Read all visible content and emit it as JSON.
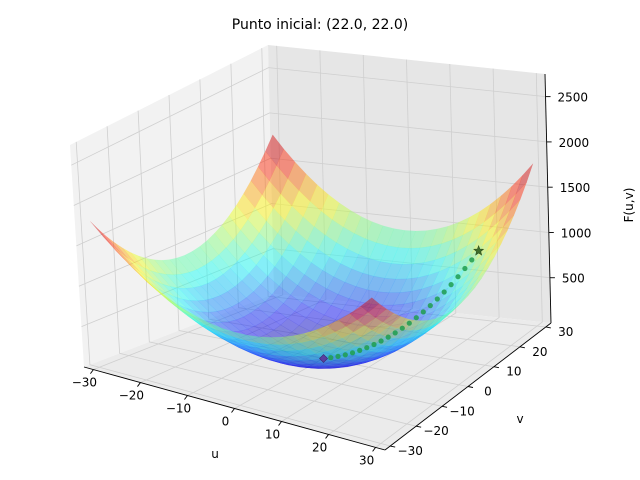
{
  "chart_data": {
    "type": "surface3d",
    "title": "Punto inicial: (22.0, 22.0)",
    "xlabel": "u",
    "ylabel": "v",
    "zlabel": "F(u,v)",
    "xlim": [
      -32,
      32
    ],
    "ylim": [
      -32,
      32
    ],
    "zlim": [
      0,
      2750
    ],
    "xticks": [
      -30,
      -20,
      -10,
      0,
      10,
      20,
      30
    ],
    "yticks": [
      -30,
      -20,
      -10,
      0,
      10,
      20,
      30
    ],
    "zticks": [
      500,
      1000,
      1500,
      2000,
      2500
    ],
    "surface": {
      "function": "F(u,v) = u^2 + v^2",
      "u_range": [
        -30,
        30
      ],
      "v_range": [
        -30,
        30
      ],
      "colormap": "jet",
      "alpha": 0.45
    },
    "path": {
      "start": {
        "u": 22.0,
        "v": 22.0,
        "F": 968,
        "marker": "star"
      },
      "end": {
        "u": 0.0,
        "v": 0.0,
        "F": 0,
        "marker": "diamond"
      },
      "points_color": "#1f9e4f",
      "points": [
        {
          "u": 22.0,
          "v": 22.0
        },
        {
          "u": 21.0,
          "v": 21.0
        },
        {
          "u": 20.0,
          "v": 20.0
        },
        {
          "u": 19.0,
          "v": 19.0
        },
        {
          "u": 18.0,
          "v": 18.0
        },
        {
          "u": 17.0,
          "v": 17.0
        },
        {
          "u": 16.0,
          "v": 16.0
        },
        {
          "u": 15.0,
          "v": 15.0
        },
        {
          "u": 14.0,
          "v": 14.0
        },
        {
          "u": 13.0,
          "v": 13.0
        },
        {
          "u": 12.0,
          "v": 12.0
        },
        {
          "u": 11.0,
          "v": 11.0
        },
        {
          "u": 10.0,
          "v": 10.0
        },
        {
          "u": 9.0,
          "v": 9.0
        },
        {
          "u": 8.0,
          "v": 8.0
        },
        {
          "u": 7.0,
          "v": 7.0
        },
        {
          "u": 6.0,
          "v": 6.0
        },
        {
          "u": 5.0,
          "v": 5.0
        },
        {
          "u": 4.0,
          "v": 4.0
        },
        {
          "u": 3.0,
          "v": 3.0
        },
        {
          "u": 2.0,
          "v": 2.0
        },
        {
          "u": 1.0,
          "v": 1.0
        },
        {
          "u": 0.0,
          "v": 0.0
        }
      ]
    }
  }
}
